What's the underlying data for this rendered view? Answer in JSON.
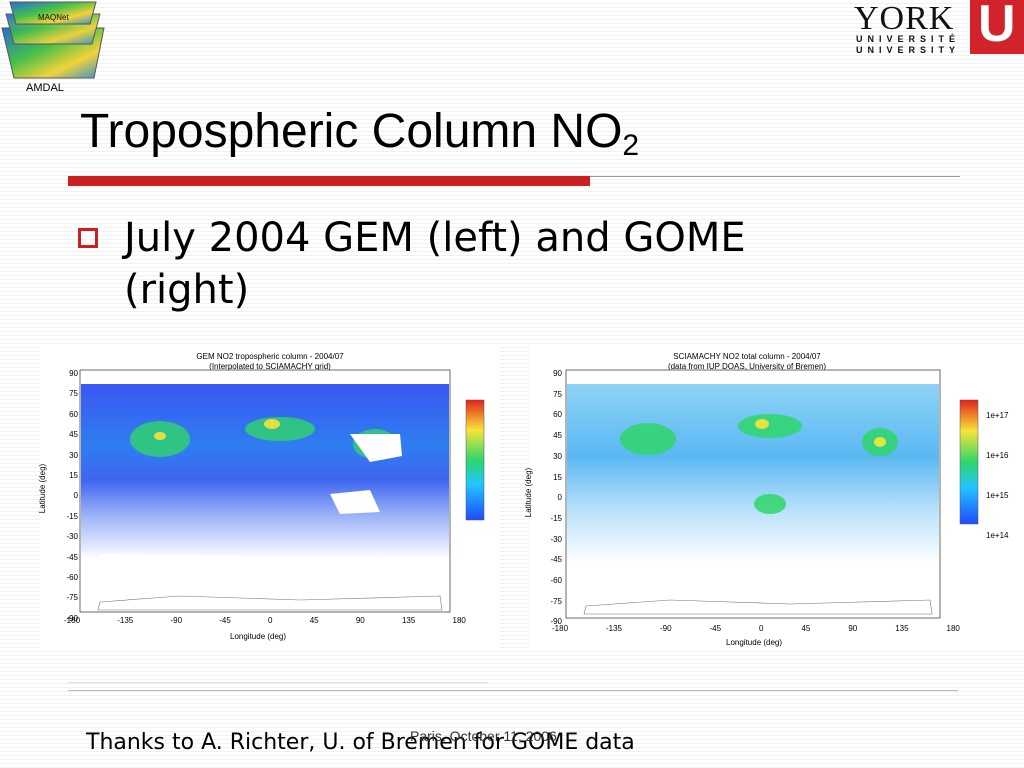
{
  "header": {
    "amdal_logo_text": "MAQNet",
    "amdal_caption": "AMDAL",
    "york_word": "YORK",
    "york_line1": "UNIVERSITÉ",
    "york_line2": "UNIVERSITY",
    "york_u": "U"
  },
  "slide": {
    "title_main": "Tropospheric Column NO",
    "title_sub": "2",
    "bullet": "July 2004 GEM (left) and GOME (right)",
    "footer_date": "Paris, October 11, 2006",
    "thanks": "Thanks to A. Richter, U. of Bremen for GOME data"
  },
  "colors": {
    "accent_red": "#cc1f22"
  },
  "maps": [
    {
      "title_line1": "GEM NO2 tropospheric column - 2004/07",
      "title_line2": "(Interpolated to SCIAMACHY grid)",
      "ylabel": "Latitude (deg)",
      "xlabel": "Longitude (deg)",
      "yticks": [
        "90",
        "75",
        "60",
        "45",
        "30",
        "15",
        "0",
        "-15",
        "-30",
        "-45",
        "-60",
        "-75",
        "-90"
      ],
      "xticks": [
        "-180",
        "-135",
        "-90",
        "-45",
        "0",
        "45",
        "90",
        "135",
        "180"
      ],
      "colorbar_labels": []
    },
    {
      "title_line1": "SCIAMACHY NO2 total column - 2004/07",
      "title_line2": "(data from IUP DOAS, University of Bremen)",
      "ylabel": "Latitude (deg)",
      "xlabel": "Longitude (deg)",
      "yticks": [
        "90",
        "75",
        "60",
        "45",
        "30",
        "15",
        "0",
        "-15",
        "-30",
        "-45",
        "-60",
        "-75",
        "-90"
      ],
      "xticks": [
        "-180",
        "-135",
        "-90",
        "-45",
        "0",
        "45",
        "90",
        "135",
        "180"
      ],
      "colorbar_labels": [
        "1e+17",
        "1e+16",
        "1e+15",
        "1e+14"
      ]
    }
  ]
}
